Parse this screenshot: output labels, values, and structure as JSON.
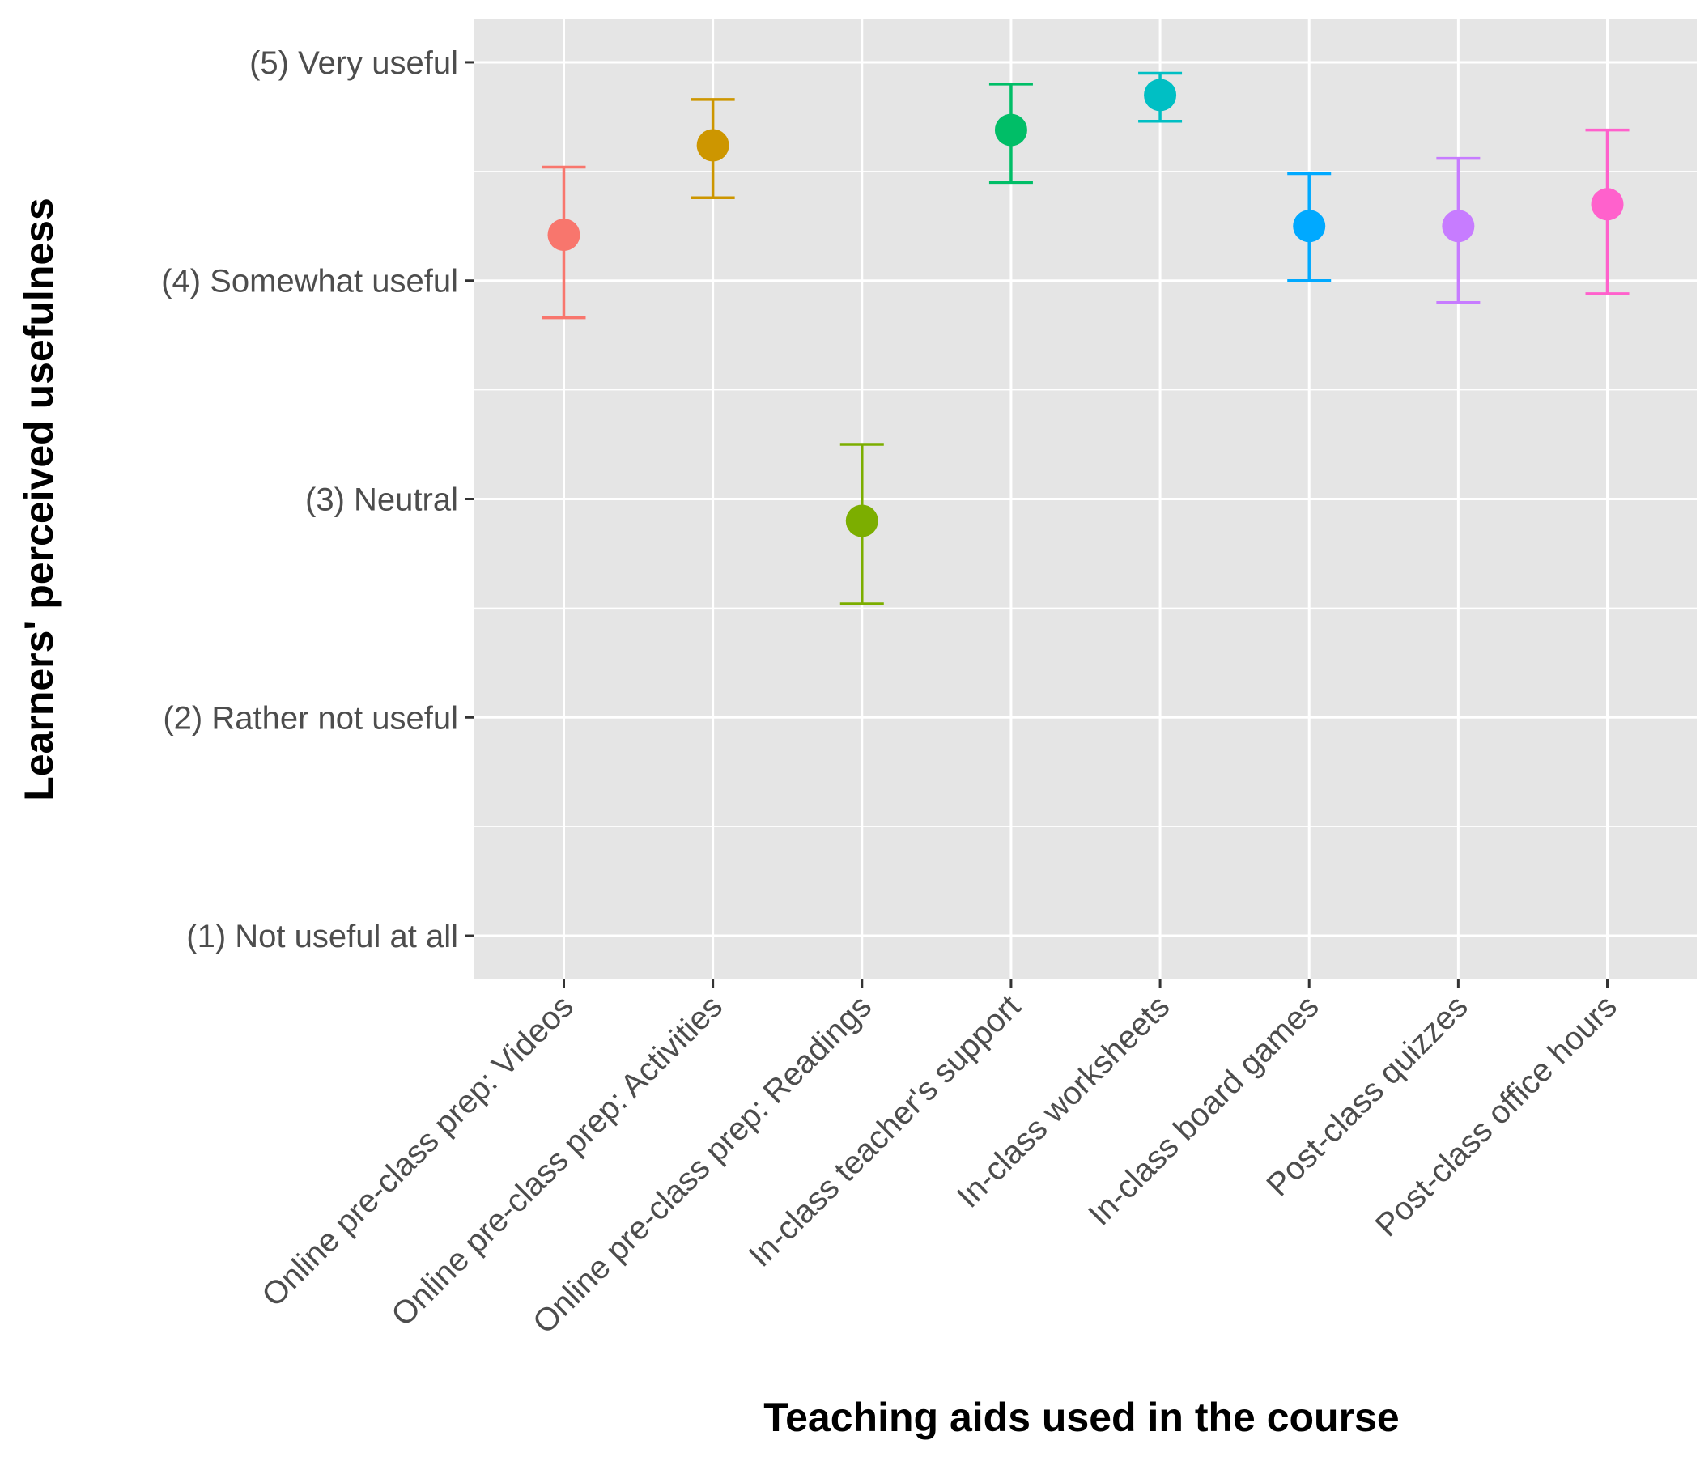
{
  "chart_data": {
    "type": "scatter",
    "xlabel": "Teaching aids used in the course",
    "ylabel": "Learners' perceived usefulness",
    "ylim": [
      0.8,
      5.2
    ],
    "grid": true,
    "legend": "none",
    "y_ticks": [
      {
        "value": 1,
        "label": "(1) Not useful at all"
      },
      {
        "value": 2,
        "label": "(2) Rather not useful"
      },
      {
        "value": 3,
        "label": "(3) Neutral"
      },
      {
        "value": 4,
        "label": "(4) Somewhat useful"
      },
      {
        "value": 5,
        "label": "(5) Very useful"
      }
    ],
    "categories": [
      "Online pre-class prep: Videos",
      "Online pre-class prep: Activities",
      "Online pre-class prep: Readings",
      "In-class teacher's support",
      "In-class worksheets",
      "In-class board games",
      "Post-class quizzes",
      "Post-class office hours"
    ],
    "values": [
      4.21,
      4.62,
      2.9,
      4.69,
      4.85,
      4.25,
      4.25,
      4.35
    ],
    "error_low": [
      3.83,
      4.38,
      2.52,
      4.45,
      4.73,
      4.0,
      3.9,
      3.94
    ],
    "error_high": [
      4.52,
      4.83,
      3.25,
      4.9,
      4.95,
      4.49,
      4.56,
      4.69
    ],
    "colors": [
      "#F8766D",
      "#CD9600",
      "#7CAE00",
      "#00BE67",
      "#00BFC4",
      "#00A9FF",
      "#C77CFF",
      "#FF61CC"
    ],
    "panel_background": "#e5e5e5",
    "grid_color": "#ffffff"
  }
}
